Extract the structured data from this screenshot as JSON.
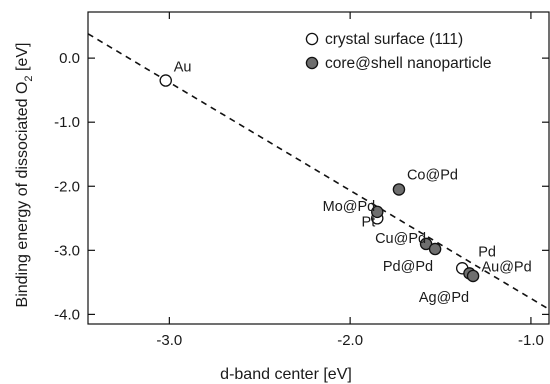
{
  "chart_data": {
    "type": "scatter",
    "title": "",
    "xlabel": "d-band center [eV]",
    "ylabel_main": "Binding energy of dissociated O",
    "ylabel_sub": "2",
    "ylabel_unit": " [eV]",
    "xlim": [
      -3.45,
      -0.9
    ],
    "ylim": [
      -4.15,
      0.72
    ],
    "x_ticks": [
      {
        "value": -3.0,
        "label": "-3.0"
      },
      {
        "value": -2.0,
        "label": "-2.0"
      },
      {
        "value": -1.0,
        "label": "-1.0"
      }
    ],
    "y_ticks": [
      {
        "value": 0.0,
        "label": "0.0"
      },
      {
        "value": -1.0,
        "label": "-1.0"
      },
      {
        "value": -2.0,
        "label": "-2.0"
      },
      {
        "value": -3.0,
        "label": "-3.0"
      },
      {
        "value": -4.0,
        "label": "-4.0"
      }
    ],
    "grid": false,
    "legend_position": "top-right",
    "series": [
      {
        "name": "crystal surface (111)",
        "marker": "open-circle",
        "color": "#ffffff",
        "points": [
          {
            "label": "Au",
            "x": -3.02,
            "y": -0.35
          },
          {
            "label": "Pt",
            "x": -1.85,
            "y": -2.5
          },
          {
            "label": "Pd",
            "x": -1.38,
            "y": -3.28
          }
        ]
      },
      {
        "name": "core@shell nanoparticle",
        "marker": "filled-circle",
        "color": "#6e6e6e",
        "points": [
          {
            "label": "Co@Pd",
            "x": -1.73,
            "y": -2.05
          },
          {
            "label": "Mo@Pd",
            "x": -1.85,
            "y": -2.4
          },
          {
            "label": "Cu@Pd",
            "x": -1.58,
            "y": -2.9
          },
          {
            "label": "Pd@Pd",
            "x": -1.53,
            "y": -2.98
          },
          {
            "label": "Au@Pd",
            "x": -1.34,
            "y": -3.36
          },
          {
            "label": "Ag@Pd",
            "x": -1.32,
            "y": -3.4
          }
        ]
      }
    ],
    "fit_line": {
      "style": "dashed",
      "x": [
        -3.45,
        -0.9
      ],
      "y": [
        0.38,
        -3.92
      ]
    }
  }
}
